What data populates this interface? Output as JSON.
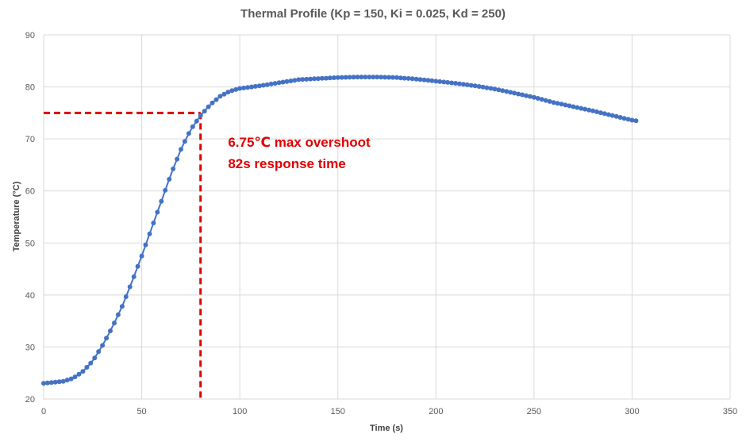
{
  "chart_data": {
    "type": "line",
    "title": "Thermal Profile (Kp = 150, Ki = 0.025, Kd = 250)",
    "xlabel": "Time (s)",
    "ylabel": "Temperature (°C)",
    "xlim": [
      0,
      350
    ],
    "ylim": [
      20,
      90
    ],
    "xticks": [
      0,
      50,
      100,
      150,
      200,
      250,
      300,
      350
    ],
    "yticks": [
      20,
      30,
      40,
      50,
      60,
      70,
      80,
      90
    ],
    "grid": true,
    "legend": "none",
    "colors": {
      "series": "#4472c4",
      "annotation": "#e00000"
    },
    "series": [
      {
        "marker": "circle",
        "key_points": [
          [
            0,
            23
          ],
          [
            10,
            23.4
          ],
          [
            15,
            24
          ],
          [
            20,
            25.3
          ],
          [
            25,
            27.3
          ],
          [
            30,
            30.3
          ],
          [
            35,
            33.8
          ],
          [
            40,
            37.8
          ],
          [
            45,
            42.5
          ],
          [
            50,
            47.5
          ],
          [
            55,
            52.8
          ],
          [
            60,
            58
          ],
          [
            65,
            63.3
          ],
          [
            70,
            68
          ],
          [
            75,
            71.8
          ],
          [
            80,
            74.5
          ],
          [
            85,
            76.6
          ],
          [
            90,
            78.2
          ],
          [
            95,
            79.2
          ],
          [
            100,
            79.7
          ],
          [
            110,
            80.2
          ],
          [
            120,
            80.8
          ],
          [
            130,
            81.4
          ],
          [
            140,
            81.6
          ],
          [
            150,
            81.8
          ],
          [
            160,
            81.9
          ],
          [
            170,
            81.9
          ],
          [
            180,
            81.8
          ],
          [
            190,
            81.5
          ],
          [
            200,
            81.1
          ],
          [
            210,
            80.7
          ],
          [
            220,
            80.2
          ],
          [
            230,
            79.6
          ],
          [
            240,
            78.8
          ],
          [
            250,
            78
          ],
          [
            260,
            77
          ],
          [
            270,
            76.2
          ],
          [
            280,
            75.4
          ],
          [
            290,
            74.5
          ],
          [
            300,
            73.6
          ],
          [
            302,
            73.5
          ]
        ]
      }
    ],
    "reference_lines": {
      "horizontal_y": 75,
      "vertical_x": 80,
      "start_x": 0
    },
    "annotations": {
      "line1": "6.75℃ max overshoot",
      "line2": "82s response time",
      "anchor_x": 94,
      "anchor_y": 68.5
    }
  }
}
